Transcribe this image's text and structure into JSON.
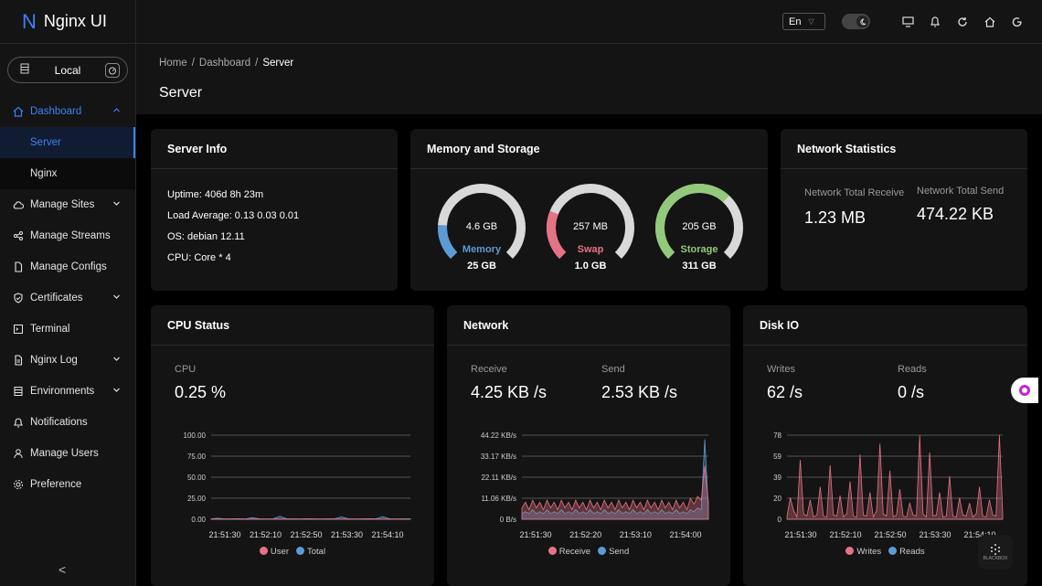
{
  "app": {
    "logo_letter": "N",
    "title": "Nginx UI"
  },
  "env": {
    "label": "Local"
  },
  "sidebar": {
    "items": [
      {
        "label": "Dashboard",
        "icon": "home-icon",
        "chevron": "up"
      },
      {
        "label": "Server",
        "sub": true
      },
      {
        "label": "Nginx",
        "sub": true
      },
      {
        "label": "Manage Sites",
        "icon": "cloud-icon",
        "chevron": "down"
      },
      {
        "label": "Manage Streams",
        "icon": "share-icon"
      },
      {
        "label": "Manage Configs",
        "icon": "file-icon"
      },
      {
        "label": "Certificates",
        "icon": "shield-icon",
        "chevron": "down"
      },
      {
        "label": "Terminal",
        "icon": "terminal-icon"
      },
      {
        "label": "Nginx Log",
        "icon": "log-icon",
        "chevron": "down"
      },
      {
        "label": "Environments",
        "icon": "database-icon",
        "chevron": "down"
      },
      {
        "label": "Notifications",
        "icon": "bell-icon"
      },
      {
        "label": "Manage Users",
        "icon": "user-icon"
      },
      {
        "label": "Preference",
        "icon": "gear-icon"
      }
    ],
    "collapse": "<"
  },
  "header": {
    "lang": "En"
  },
  "breadcrumb": [
    "Home",
    "Dashboard",
    "Server"
  ],
  "page_title": "Server",
  "server_info": {
    "title": "Server Info",
    "lines": [
      "Uptime: 406d 8h 23m",
      "Load Average: 0.13 0.03 0.01",
      "OS: debian 12.11",
      "CPU: Core * 4"
    ]
  },
  "memory": {
    "title": "Memory and Storage",
    "gauges": [
      {
        "value": "4.6 GB",
        "name": "Memory",
        "total": "25 GB",
        "fraction": 0.18,
        "color": "#5b9bd5"
      },
      {
        "value": "257 MB",
        "name": "Swap",
        "total": "1.0 GB",
        "fraction": 0.25,
        "color": "#e57385"
      },
      {
        "value": "205 GB",
        "name": "Storage",
        "total": "311 GB",
        "fraction": 0.66,
        "color": "#93c97a"
      }
    ]
  },
  "network_stats": {
    "title": "Network Statistics",
    "receive_label": "Network Total Receive",
    "receive_value": "1.23 MB",
    "send_label": "Network Total Send",
    "send_value": "474.22 KB"
  },
  "cpu": {
    "title": "CPU Status",
    "label": "CPU",
    "value": "0.25 %"
  },
  "network": {
    "title": "Network",
    "receive_label": "Receive",
    "receive_value": "4.25 KB /s",
    "send_label": "Send",
    "send_value": "2.53 KB /s"
  },
  "disk": {
    "title": "Disk IO",
    "writes_label": "Writes",
    "writes_value": "62 /s",
    "reads_label": "Reads",
    "reads_value": "0 /s"
  },
  "chart_data": [
    {
      "type": "area",
      "title": "CPU Status",
      "y_ticks": [
        "100.00",
        "75.00",
        "50.00",
        "25.00",
        "0.00"
      ],
      "ylim": [
        0,
        100
      ],
      "x_ticks": [
        "21:51:30",
        "21:52:10",
        "21:52:50",
        "21:53:30",
        "21:54:10"
      ],
      "series": [
        {
          "name": "User",
          "color": "#e57385",
          "values": [
            0.3,
            0.2,
            0.4,
            0.2,
            0.3,
            0.2,
            0.2,
            0.3,
            0.2,
            0.2,
            0.3,
            0.2,
            0.2,
            0.2,
            0.3,
            0.2,
            0.2,
            0.3,
            0.2,
            0.2,
            0.3,
            0.2,
            0.2,
            0.3,
            0.2,
            0.2,
            0.3,
            0.2,
            0.2,
            0.2
          ]
        },
        {
          "name": "Total",
          "color": "#5b9bd5",
          "values": [
            0.5,
            1.2,
            0.4,
            0.5,
            0.6,
            0.4,
            1.8,
            0.5,
            0.4,
            0.5,
            3.5,
            0.6,
            0.5,
            0.4,
            0.6,
            0.5,
            0.4,
            0.5,
            0.6,
            2.8,
            0.5,
            0.4,
            0.5,
            0.6,
            0.5,
            3.0,
            0.5,
            0.4,
            0.5,
            0.5
          ]
        }
      ]
    },
    {
      "type": "area",
      "title": "Network",
      "y_ticks": [
        "44.22 KB/s",
        "33.17 KB/s",
        "22.11 KB/s",
        "11.06 KB/s",
        "0 B/s"
      ],
      "ylim": [
        0,
        44.22
      ],
      "x_ticks": [
        "21:51:30",
        "21:52:20",
        "21:53:10",
        "21:54:00"
      ],
      "series": [
        {
          "name": "Receive",
          "color": "#e57385",
          "values": [
            6,
            9,
            5,
            10,
            6,
            9,
            5,
            10,
            6,
            9,
            5,
            10,
            6,
            9,
            5,
            10,
            6,
            9,
            5,
            10,
            6,
            9,
            5,
            10,
            6,
            9,
            5,
            10,
            6,
            9,
            5,
            10,
            6,
            9,
            5,
            10,
            6,
            9,
            5,
            10,
            6,
            9,
            5,
            10,
            6,
            9,
            5,
            11,
            8,
            12,
            10,
            28,
            9
          ]
        },
        {
          "name": "Send",
          "color": "#5b9bd5",
          "values": [
            3,
            4,
            3,
            5,
            3,
            4,
            3,
            5,
            3,
            4,
            3,
            5,
            3,
            4,
            3,
            5,
            3,
            4,
            3,
            5,
            3,
            4,
            3,
            5,
            3,
            4,
            3,
            5,
            3,
            4,
            3,
            5,
            3,
            4,
            3,
            5,
            3,
            4,
            3,
            5,
            3,
            4,
            3,
            5,
            3,
            4,
            3,
            5,
            4,
            6,
            5,
            42,
            5
          ]
        }
      ]
    },
    {
      "type": "area",
      "title": "Disk IO",
      "y_ticks": [
        "78",
        "59",
        "39",
        "20",
        "0"
      ],
      "ylim": [
        0,
        78
      ],
      "x_ticks": [
        "21:51:30",
        "21:52:10",
        "21:52:50",
        "21:53:30",
        "21:54:10"
      ],
      "series": [
        {
          "name": "Writes",
          "color": "#e57385",
          "values": [
            3,
            20,
            8,
            2,
            55,
            5,
            3,
            18,
            2,
            4,
            30,
            3,
            2,
            50,
            4,
            3,
            22,
            2,
            5,
            35,
            3,
            2,
            60,
            4,
            3,
            25,
            2,
            8,
            70,
            5,
            3,
            45,
            2,
            4,
            28,
            3,
            2,
            15,
            4,
            3,
            78,
            5,
            2,
            62,
            3,
            4,
            25,
            2,
            3,
            40,
            3,
            2,
            20,
            4,
            3,
            15,
            2,
            5,
            30,
            3,
            2,
            18,
            4,
            3,
            78,
            5
          ]
        },
        {
          "name": "Reads",
          "color": "#5b9bd5",
          "values": [
            0,
            0,
            0,
            0,
            0,
            0,
            0,
            0,
            0,
            0,
            0,
            0,
            0,
            0,
            0,
            0,
            0,
            0,
            0,
            0,
            0,
            0,
            0,
            0,
            0,
            0,
            0,
            0,
            0,
            0,
            0,
            0,
            0,
            0,
            0,
            0,
            0,
            0,
            0,
            0,
            0,
            0,
            0,
            0,
            0,
            0,
            0,
            0,
            0,
            0,
            0,
            0,
            0,
            0,
            0,
            0,
            0,
            0,
            0,
            0,
            0,
            0,
            0,
            0,
            0,
            0
          ]
        }
      ]
    }
  ],
  "branding": {
    "watermark": "BLACKBOX"
  }
}
